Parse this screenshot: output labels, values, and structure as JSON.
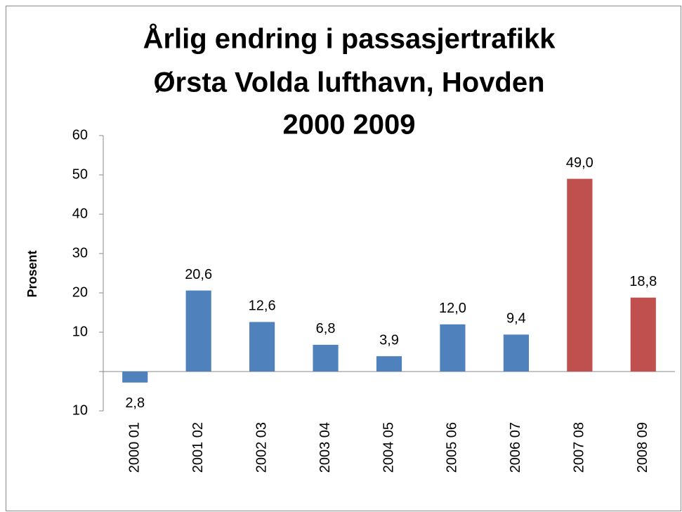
{
  "chart_data": {
    "type": "bar",
    "title": [
      "Årlig endring i passasjertrafikk",
      "Ørsta Volda lufthavn, Hovden",
      "2000 2009"
    ],
    "y_label": "Prosent",
    "categories": [
      "2000 01",
      "2001 02",
      "2002 03",
      "2003 04",
      "2004 05",
      "2005 06",
      "2006 07",
      "2007 08",
      "2008 09"
    ],
    "values": [
      -2.8,
      20.6,
      12.6,
      6.8,
      3.9,
      12.0,
      9.4,
      49.0,
      18.8
    ],
    "value_labels": [
      "2,8",
      "20,6",
      "12,6",
      "6,8",
      "3,9",
      "12,0",
      "9,4",
      "49,0",
      "18,8"
    ],
    "colors": [
      "#4f81bd",
      "#4f81bd",
      "#4f81bd",
      "#4f81bd",
      "#4f81bd",
      "#4f81bd",
      "#4f81bd",
      "#c0504d",
      "#c0504d"
    ],
    "ylim": [
      -10,
      60
    ],
    "yticks": [
      {
        "value": -10,
        "label": "10"
      },
      10,
      20,
      30,
      40,
      50,
      60
    ],
    "grid": false
  }
}
